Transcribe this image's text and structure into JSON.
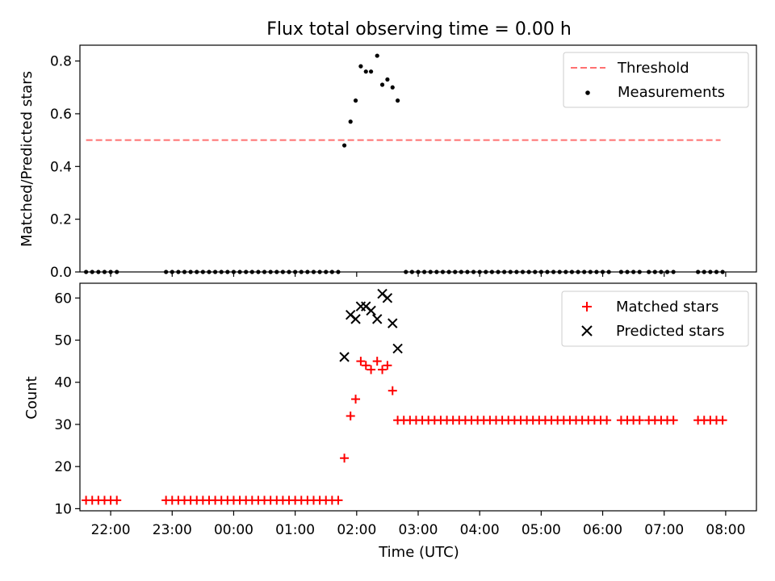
{
  "figure": {
    "title": "Flux total observing time = 0.00 h"
  },
  "chart_data": [
    {
      "type": "scatter",
      "ylabel": "Matched/Predicted stars",
      "ylim": [
        0,
        0.86
      ],
      "yticks": [
        "0.0",
        "0.2",
        "0.4",
        "0.6",
        "0.8"
      ],
      "xlim": [
        "21:30",
        "08:30"
      ],
      "legend_position": "top-right",
      "threshold": {
        "name": "Threshold",
        "color": "#ff7070",
        "style": "dashed",
        "y": 0.5,
        "x_range": [
          "21:36",
          "07:55"
        ]
      },
      "series": [
        {
          "name": "Measurements",
          "color": "#000000",
          "marker": "dot",
          "points": [
            [
              "21:36",
              0
            ],
            [
              "21:42",
              0
            ],
            [
              "21:48",
              0
            ],
            [
              "21:54",
              0
            ],
            [
              "22:00",
              0
            ],
            [
              "22:06",
              0
            ],
            [
              "22:54",
              0
            ],
            [
              "23:00",
              0
            ],
            [
              "23:06",
              0
            ],
            [
              "23:12",
              0
            ],
            [
              "23:18",
              0
            ],
            [
              "23:24",
              0
            ],
            [
              "23:30",
              0
            ],
            [
              "23:36",
              0
            ],
            [
              "23:42",
              0
            ],
            [
              "23:48",
              0
            ],
            [
              "23:54",
              0
            ],
            [
              "00:00",
              0
            ],
            [
              "00:06",
              0
            ],
            [
              "00:12",
              0
            ],
            [
              "00:18",
              0
            ],
            [
              "00:24",
              0
            ],
            [
              "00:30",
              0
            ],
            [
              "00:36",
              0
            ],
            [
              "00:42",
              0
            ],
            [
              "00:48",
              0
            ],
            [
              "00:54",
              0
            ],
            [
              "01:00",
              0
            ],
            [
              "01:06",
              0
            ],
            [
              "01:12",
              0
            ],
            [
              "01:18",
              0
            ],
            [
              "01:24",
              0
            ],
            [
              "01:30",
              0
            ],
            [
              "01:36",
              0
            ],
            [
              "01:42",
              0
            ],
            [
              "01:48",
              0.48
            ],
            [
              "01:54",
              0.57
            ],
            [
              "01:59",
              0.65
            ],
            [
              "02:04",
              0.78
            ],
            [
              "02:09",
              0.76
            ],
            [
              "02:14",
              0.76
            ],
            [
              "02:20",
              0.82
            ],
            [
              "02:25",
              0.71
            ],
            [
              "02:30",
              0.73
            ],
            [
              "02:35",
              0.7
            ],
            [
              "02:40",
              0.65
            ],
            [
              "02:48",
              0
            ],
            [
              "02:54",
              0
            ],
            [
              "03:00",
              0
            ],
            [
              "03:06",
              0
            ],
            [
              "03:12",
              0
            ],
            [
              "03:18",
              0
            ],
            [
              "03:24",
              0
            ],
            [
              "03:30",
              0
            ],
            [
              "03:36",
              0
            ],
            [
              "03:42",
              0
            ],
            [
              "03:48",
              0
            ],
            [
              "03:54",
              0
            ],
            [
              "04:00",
              0
            ],
            [
              "04:06",
              0
            ],
            [
              "04:12",
              0
            ],
            [
              "04:18",
              0
            ],
            [
              "04:24",
              0
            ],
            [
              "04:30",
              0
            ],
            [
              "04:36",
              0
            ],
            [
              "04:42",
              0
            ],
            [
              "04:48",
              0
            ],
            [
              "04:54",
              0
            ],
            [
              "05:00",
              0
            ],
            [
              "05:06",
              0
            ],
            [
              "05:12",
              0
            ],
            [
              "05:18",
              0
            ],
            [
              "05:24",
              0
            ],
            [
              "05:30",
              0
            ],
            [
              "05:36",
              0
            ],
            [
              "05:42",
              0
            ],
            [
              "05:48",
              0
            ],
            [
              "05:54",
              0
            ],
            [
              "06:00",
              0
            ],
            [
              "06:06",
              0
            ],
            [
              "06:18",
              0
            ],
            [
              "06:24",
              0
            ],
            [
              "06:30",
              0
            ],
            [
              "06:36",
              0
            ],
            [
              "06:45",
              0
            ],
            [
              "06:51",
              0
            ],
            [
              "06:57",
              0
            ],
            [
              "07:03",
              0
            ],
            [
              "07:09",
              0
            ],
            [
              "07:33",
              0
            ],
            [
              "07:39",
              0
            ],
            [
              "07:45",
              0
            ],
            [
              "07:51",
              0
            ],
            [
              "07:57",
              0
            ]
          ]
        }
      ]
    },
    {
      "type": "scatter",
      "xlabel": "Time (UTC)",
      "ylabel": "Count",
      "ylim": [
        9.5,
        63.5
      ],
      "yticks": [
        "10",
        "20",
        "30",
        "40",
        "50",
        "60"
      ],
      "xlim": [
        "21:30",
        "08:30"
      ],
      "xticks": [
        "22:00",
        "23:00",
        "00:00",
        "01:00",
        "02:00",
        "03:00",
        "04:00",
        "05:00",
        "06:00",
        "07:00",
        "08:00"
      ],
      "legend_position": "top-right",
      "series": [
        {
          "name": "Matched stars",
          "color": "#ff0000",
          "marker": "plus",
          "points": [
            [
              "21:36",
              12
            ],
            [
              "21:42",
              12
            ],
            [
              "21:48",
              12
            ],
            [
              "21:54",
              12
            ],
            [
              "22:00",
              12
            ],
            [
              "22:06",
              12
            ],
            [
              "22:54",
              12
            ],
            [
              "23:00",
              12
            ],
            [
              "23:06",
              12
            ],
            [
              "23:12",
              12
            ],
            [
              "23:18",
              12
            ],
            [
              "23:24",
              12
            ],
            [
              "23:30",
              12
            ],
            [
              "23:36",
              12
            ],
            [
              "23:42",
              12
            ],
            [
              "23:48",
              12
            ],
            [
              "23:54",
              12
            ],
            [
              "00:00",
              12
            ],
            [
              "00:06",
              12
            ],
            [
              "00:12",
              12
            ],
            [
              "00:18",
              12
            ],
            [
              "00:24",
              12
            ],
            [
              "00:30",
              12
            ],
            [
              "00:36",
              12
            ],
            [
              "00:42",
              12
            ],
            [
              "00:48",
              12
            ],
            [
              "00:54",
              12
            ],
            [
              "01:00",
              12
            ],
            [
              "01:06",
              12
            ],
            [
              "01:12",
              12
            ],
            [
              "01:18",
              12
            ],
            [
              "01:24",
              12
            ],
            [
              "01:30",
              12
            ],
            [
              "01:36",
              12
            ],
            [
              "01:42",
              12
            ],
            [
              "01:48",
              22
            ],
            [
              "01:54",
              32
            ],
            [
              "01:59",
              36
            ],
            [
              "02:04",
              45
            ],
            [
              "02:09",
              44
            ],
            [
              "02:14",
              43
            ],
            [
              "02:20",
              45
            ],
            [
              "02:25",
              43
            ],
            [
              "02:30",
              44
            ],
            [
              "02:35",
              38
            ],
            [
              "02:40",
              31
            ],
            [
              "02:46",
              31
            ],
            [
              "02:52",
              31
            ],
            [
              "02:58",
              31
            ],
            [
              "03:04",
              31
            ],
            [
              "03:10",
              31
            ],
            [
              "03:16",
              31
            ],
            [
              "03:22",
              31
            ],
            [
              "03:28",
              31
            ],
            [
              "03:34",
              31
            ],
            [
              "03:40",
              31
            ],
            [
              "03:46",
              31
            ],
            [
              "03:52",
              31
            ],
            [
              "03:58",
              31
            ],
            [
              "04:04",
              31
            ],
            [
              "04:10",
              31
            ],
            [
              "04:16",
              31
            ],
            [
              "04:22",
              31
            ],
            [
              "04:28",
              31
            ],
            [
              "04:34",
              31
            ],
            [
              "04:40",
              31
            ],
            [
              "04:46",
              31
            ],
            [
              "04:52",
              31
            ],
            [
              "04:58",
              31
            ],
            [
              "05:04",
              31
            ],
            [
              "05:10",
              31
            ],
            [
              "05:16",
              31
            ],
            [
              "05:22",
              31
            ],
            [
              "05:28",
              31
            ],
            [
              "05:34",
              31
            ],
            [
              "05:40",
              31
            ],
            [
              "05:46",
              31
            ],
            [
              "05:52",
              31
            ],
            [
              "05:58",
              31
            ],
            [
              "06:04",
              31
            ],
            [
              "06:18",
              31
            ],
            [
              "06:24",
              31
            ],
            [
              "06:30",
              31
            ],
            [
              "06:36",
              31
            ],
            [
              "06:45",
              31
            ],
            [
              "06:51",
              31
            ],
            [
              "06:57",
              31
            ],
            [
              "07:03",
              31
            ],
            [
              "07:09",
              31
            ],
            [
              "07:33",
              31
            ],
            [
              "07:39",
              31
            ],
            [
              "07:45",
              31
            ],
            [
              "07:51",
              31
            ],
            [
              "07:57",
              31
            ]
          ]
        },
        {
          "name": "Predicted stars",
          "color": "#000000",
          "marker": "x",
          "points": [
            [
              "01:48",
              46
            ],
            [
              "01:54",
              56
            ],
            [
              "01:59",
              55
            ],
            [
              "02:04",
              58
            ],
            [
              "02:09",
              58
            ],
            [
              "02:14",
              57
            ],
            [
              "02:20",
              55
            ],
            [
              "02:25",
              61
            ],
            [
              "02:30",
              60
            ],
            [
              "02:35",
              54
            ],
            [
              "02:40",
              48
            ]
          ]
        }
      ]
    }
  ]
}
